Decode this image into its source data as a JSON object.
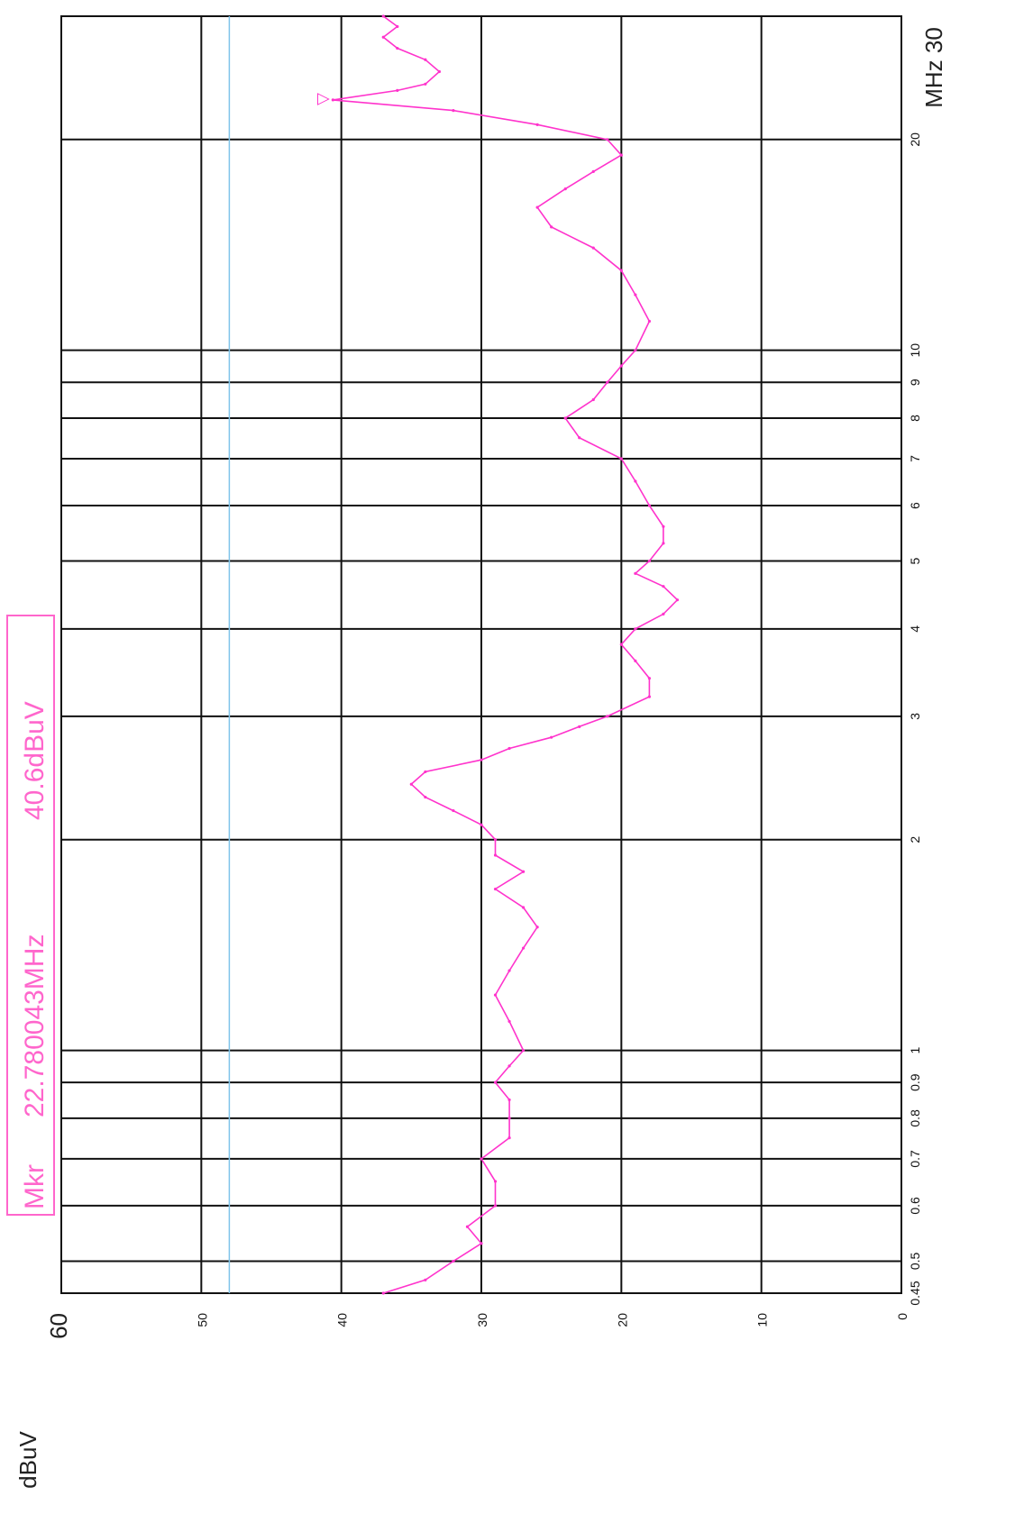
{
  "chart_data": {
    "type": "line",
    "title": "",
    "ylabel": "dBuV",
    "xlabel": "MHz",
    "x_scale": "log",
    "xlim": [
      0.45,
      30
    ],
    "ylim": [
      0,
      60
    ],
    "y_ticks": [
      0,
      10,
      20,
      30,
      40,
      50,
      60
    ],
    "y_tick_labels": [
      "0",
      "10",
      "20",
      "30",
      "40",
      "50",
      "60"
    ],
    "x_ticks": [
      0.45,
      0.5,
      0.6,
      0.7,
      0.8,
      0.9,
      1,
      2,
      3,
      4,
      5,
      6,
      7,
      8,
      9,
      10,
      20,
      30
    ],
    "x_tick_labels": [
      "0.45",
      "0.5",
      "0.6",
      "0.7",
      "0.8",
      "0.9",
      "1",
      "2",
      "3",
      "4",
      "5",
      "6",
      "7",
      "8",
      "9",
      "10",
      "20",
      "30"
    ],
    "grid": true,
    "limit_line": {
      "value": 48,
      "color": "#7fc4ea"
    },
    "marker": {
      "label": "Mkr",
      "frequency": "22.780043MHz",
      "level": "40.6dBuV",
      "x": 22.78,
      "y": 40.6,
      "symbol": "▽"
    },
    "series": [
      {
        "color": "#ff33cc",
        "x": [
          0.45,
          0.47,
          0.5,
          0.53,
          0.56,
          0.6,
          0.65,
          0.7,
          0.75,
          0.8,
          0.85,
          0.9,
          0.95,
          1.0,
          1.1,
          1.2,
          1.3,
          1.4,
          1.5,
          1.6,
          1.7,
          1.8,
          1.9,
          2.0,
          2.1,
          2.2,
          2.3,
          2.4,
          2.5,
          2.6,
          2.7,
          2.8,
          2.9,
          3.0,
          3.2,
          3.4,
          3.6,
          3.8,
          4.0,
          4.2,
          4.4,
          4.6,
          4.8,
          5.0,
          5.3,
          5.6,
          6.0,
          6.5,
          7.0,
          7.5,
          8.0,
          8.5,
          9.0,
          9.5,
          10.0,
          11,
          12,
          13,
          14,
          15,
          16,
          17,
          18,
          19,
          20,
          21,
          22,
          22.78,
          23.5,
          24,
          25,
          26,
          27,
          28,
          29,
          30
        ],
        "y": [
          37,
          34,
          32,
          30,
          31,
          29,
          29,
          30,
          28,
          28,
          28,
          29,
          28,
          27,
          28,
          29,
          28,
          27,
          26,
          27,
          29,
          27,
          29,
          29,
          30,
          32,
          34,
          35,
          34,
          30,
          28,
          25,
          23,
          21,
          18,
          18,
          19,
          20,
          19,
          17,
          16,
          17,
          19,
          18,
          17,
          17,
          18,
          19,
          20,
          23,
          24,
          22,
          21,
          20,
          19,
          18,
          19,
          20,
          22,
          25,
          26,
          24,
          22,
          20,
          21,
          26,
          32,
          40.6,
          36,
          34,
          33,
          34,
          36,
          37,
          36,
          37
        ]
      }
    ]
  }
}
